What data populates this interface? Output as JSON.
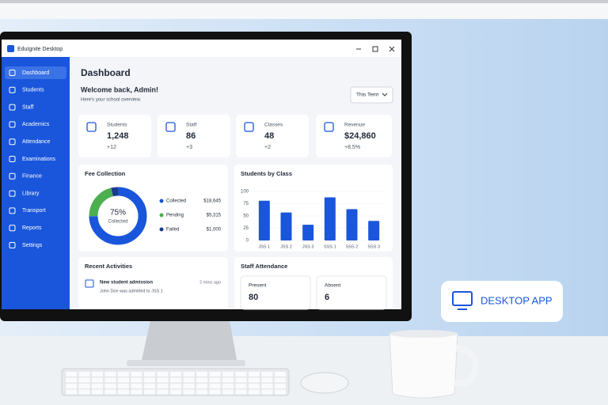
{
  "window_title": "EduIgnite Desktop",
  "sidebar": [
    "Dashboard",
    "Students",
    "Staff",
    "Academics",
    "Attendance",
    "Examinations",
    "Finance",
    "Library",
    "Transport",
    "Reports",
    "Settings"
  ],
  "page_title": "Dashboard",
  "welcome": "Welcome back, Admin!",
  "subtitle": "Here's your school overview.",
  "term_select": "This Term",
  "stats": [
    {
      "label": "Students",
      "value": "1,248",
      "change": "+12"
    },
    {
      "label": "Staff",
      "value": "86",
      "change": "+3"
    },
    {
      "label": "Classes",
      "value": "48",
      "change": "+2"
    },
    {
      "label": "Revenue",
      "value": "$24,860",
      "change": "+8.5%"
    }
  ],
  "chart_data": [
    {
      "type": "donut",
      "title": "Fee Collection",
      "center_label": "75%",
      "center_sublabel": "Collected",
      "categories": [
        "Collected",
        "Pending",
        "Failed"
      ],
      "values": [
        18645,
        5315,
        1000
      ],
      "value_labels": [
        "$18,645",
        "$5,315",
        "$1,000"
      ],
      "colors": [
        "#1a56db",
        "#4caf50",
        "#1e3a8a"
      ]
    },
    {
      "type": "bar",
      "title": "Students by Class",
      "categories": [
        "JSS 1",
        "JSS 2",
        "JSS 3",
        "SSS 1",
        "SSS 2",
        "SSS 3"
      ],
      "values": [
        81,
        57,
        32,
        88,
        64,
        40
      ],
      "color": "#1a56db",
      "ylim": [
        0,
        100
      ],
      "yticks": [
        0,
        25,
        50,
        75,
        100
      ],
      "grid": true
    }
  ],
  "recent_activities": {
    "title": "Recent Activities",
    "items": [
      {
        "title": "New student admission",
        "time": "2 mins ago",
        "detail": "John Doe was admitted to JSS 1"
      }
    ]
  },
  "staff_attendance": {
    "title": "Staff Attendance",
    "items": [
      {
        "label": "Present",
        "value": "80"
      },
      {
        "label": "Absent",
        "value": "6"
      }
    ]
  },
  "badge": "DESKTOP APP"
}
